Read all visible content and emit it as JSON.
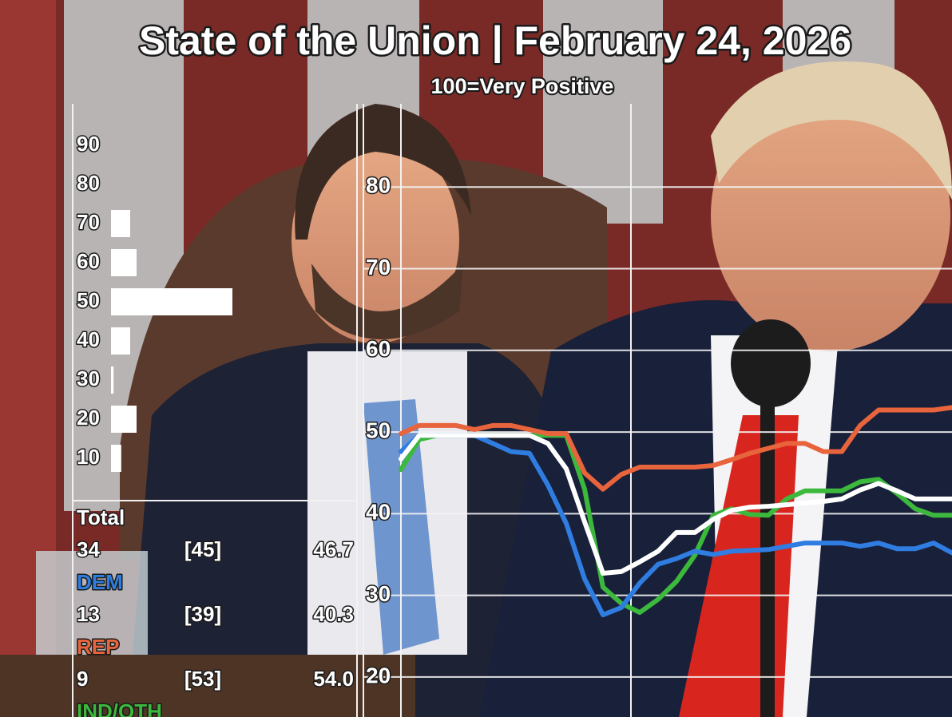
{
  "chart_data": [
    {
      "type": "line",
      "title": "State of the Union | February 24, 2026",
      "subtitle": "100=Very Positive",
      "categories": [
        null,
        null,
        null,
        null,
        null,
        null,
        null,
        null,
        null,
        null,
        null,
        null,
        null,
        null,
        null,
        null,
        null,
        null,
        null,
        null,
        null,
        null,
        null,
        null,
        null,
        null,
        null,
        null,
        null,
        null,
        null
      ],
      "ylim": [
        15,
        90
      ],
      "yticks": [
        20,
        30,
        40,
        50,
        60,
        70,
        80
      ],
      "grid": true,
      "series": [
        {
          "name": "Total",
          "color": "#ffffff",
          "values": [
            46.7,
            49.6,
            49.6,
            49.6,
            49.6,
            49.6,
            49.6,
            49.6,
            48.6,
            45.5,
            39.0,
            32.7,
            32.9,
            34.1,
            35.4,
            37.7,
            37.7,
            39.3,
            40.4,
            40.8,
            40.9,
            41.1,
            41.3,
            41.5,
            41.8,
            42.9,
            43.7,
            42.8,
            41.8,
            41.8,
            41.8
          ]
        },
        {
          "name": "DEM",
          "color": "#2f7de1",
          "values": [
            47.6,
            49.6,
            49.6,
            49.6,
            49.6,
            48.6,
            47.6,
            47.4,
            43.5,
            38.8,
            32.0,
            27.6,
            28.5,
            31.5,
            33.8,
            34.5,
            35.4,
            35.0,
            35.4,
            35.5,
            35.6,
            36.0,
            36.4,
            36.4,
            36.4,
            36.0,
            36.4,
            35.7,
            35.7,
            36.4,
            35.2
          ]
        },
        {
          "name": "REP",
          "color": "#e8643c",
          "values": [
            49.8,
            50.8,
            50.8,
            50.8,
            50.3,
            50.8,
            50.8,
            50.3,
            49.8,
            49.8,
            45.0,
            43.0,
            44.8,
            45.7,
            45.7,
            45.7,
            45.7,
            45.9,
            46.6,
            47.4,
            48.0,
            48.6,
            48.6,
            47.6,
            47.6,
            50.8,
            52.7,
            52.7,
            52.7,
            52.7,
            53.0
          ]
        },
        {
          "name": "IND/OTH",
          "color": "#3cb83c",
          "values": [
            45.4,
            49.1,
            49.6,
            49.6,
            49.6,
            49.6,
            49.6,
            49.6,
            49.6,
            49.6,
            43.0,
            31.0,
            29.0,
            27.9,
            29.5,
            31.7,
            34.9,
            39.8,
            40.6,
            39.9,
            39.8,
            41.8,
            42.8,
            42.8,
            42.8,
            43.9,
            44.2,
            42.5,
            40.6,
            39.8,
            39.8
          ]
        }
      ]
    },
    {
      "type": "hbar",
      "categories": [
        "90",
        "80",
        "70",
        "60",
        "50",
        "40",
        "30",
        "20",
        "10"
      ],
      "values": [
        0,
        0,
        3,
        4,
        19,
        3,
        0.4,
        4,
        1.6
      ],
      "color": "#ffffff"
    }
  ],
  "panel": {
    "rows": [
      {
        "series": 0,
        "count": "34",
        "bracket": "[45]",
        "score": "46.7"
      },
      {
        "series": 1,
        "count": "13",
        "bracket": "[39]",
        "score": "40.3"
      },
      {
        "series": 2,
        "count": "9",
        "bracket": "[53]",
        "score": "54.0"
      },
      {
        "series": 3
      }
    ]
  }
}
